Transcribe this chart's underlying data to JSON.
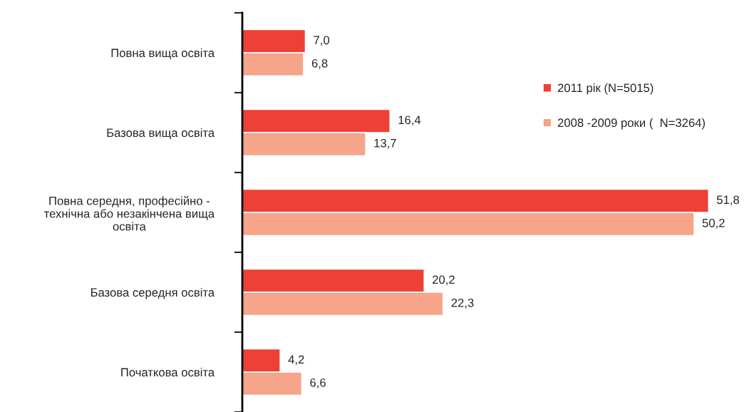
{
  "chart_data": {
    "type": "bar",
    "orientation": "horizontal",
    "categories": [
      "Повна вища освіта",
      "Базова вища освіта",
      "Повна середня, професійно -\nтехнічна або незакінчена вища\nосвіта",
      "Базова середня освіта",
      "Початкова освіта"
    ],
    "series": [
      {
        "name": "2011 рік (N=5015)",
        "color": "#ee4036",
        "values": [
          7.0,
          16.4,
          51.8,
          20.2,
          4.2
        ],
        "value_labels": [
          "7,0",
          "16,4",
          "51,8",
          "20,2",
          "4,2"
        ]
      },
      {
        "name": "2008 -2009 роки (  N=3264)",
        "color": "#f6a48a",
        "values": [
          6.8,
          13.7,
          50.2,
          22.3,
          6.6
        ],
        "value_labels": [
          "6,8",
          "13,7",
          "50,2",
          "22,3",
          "6,6"
        ]
      }
    ],
    "legend": "top right",
    "grid": false
  }
}
